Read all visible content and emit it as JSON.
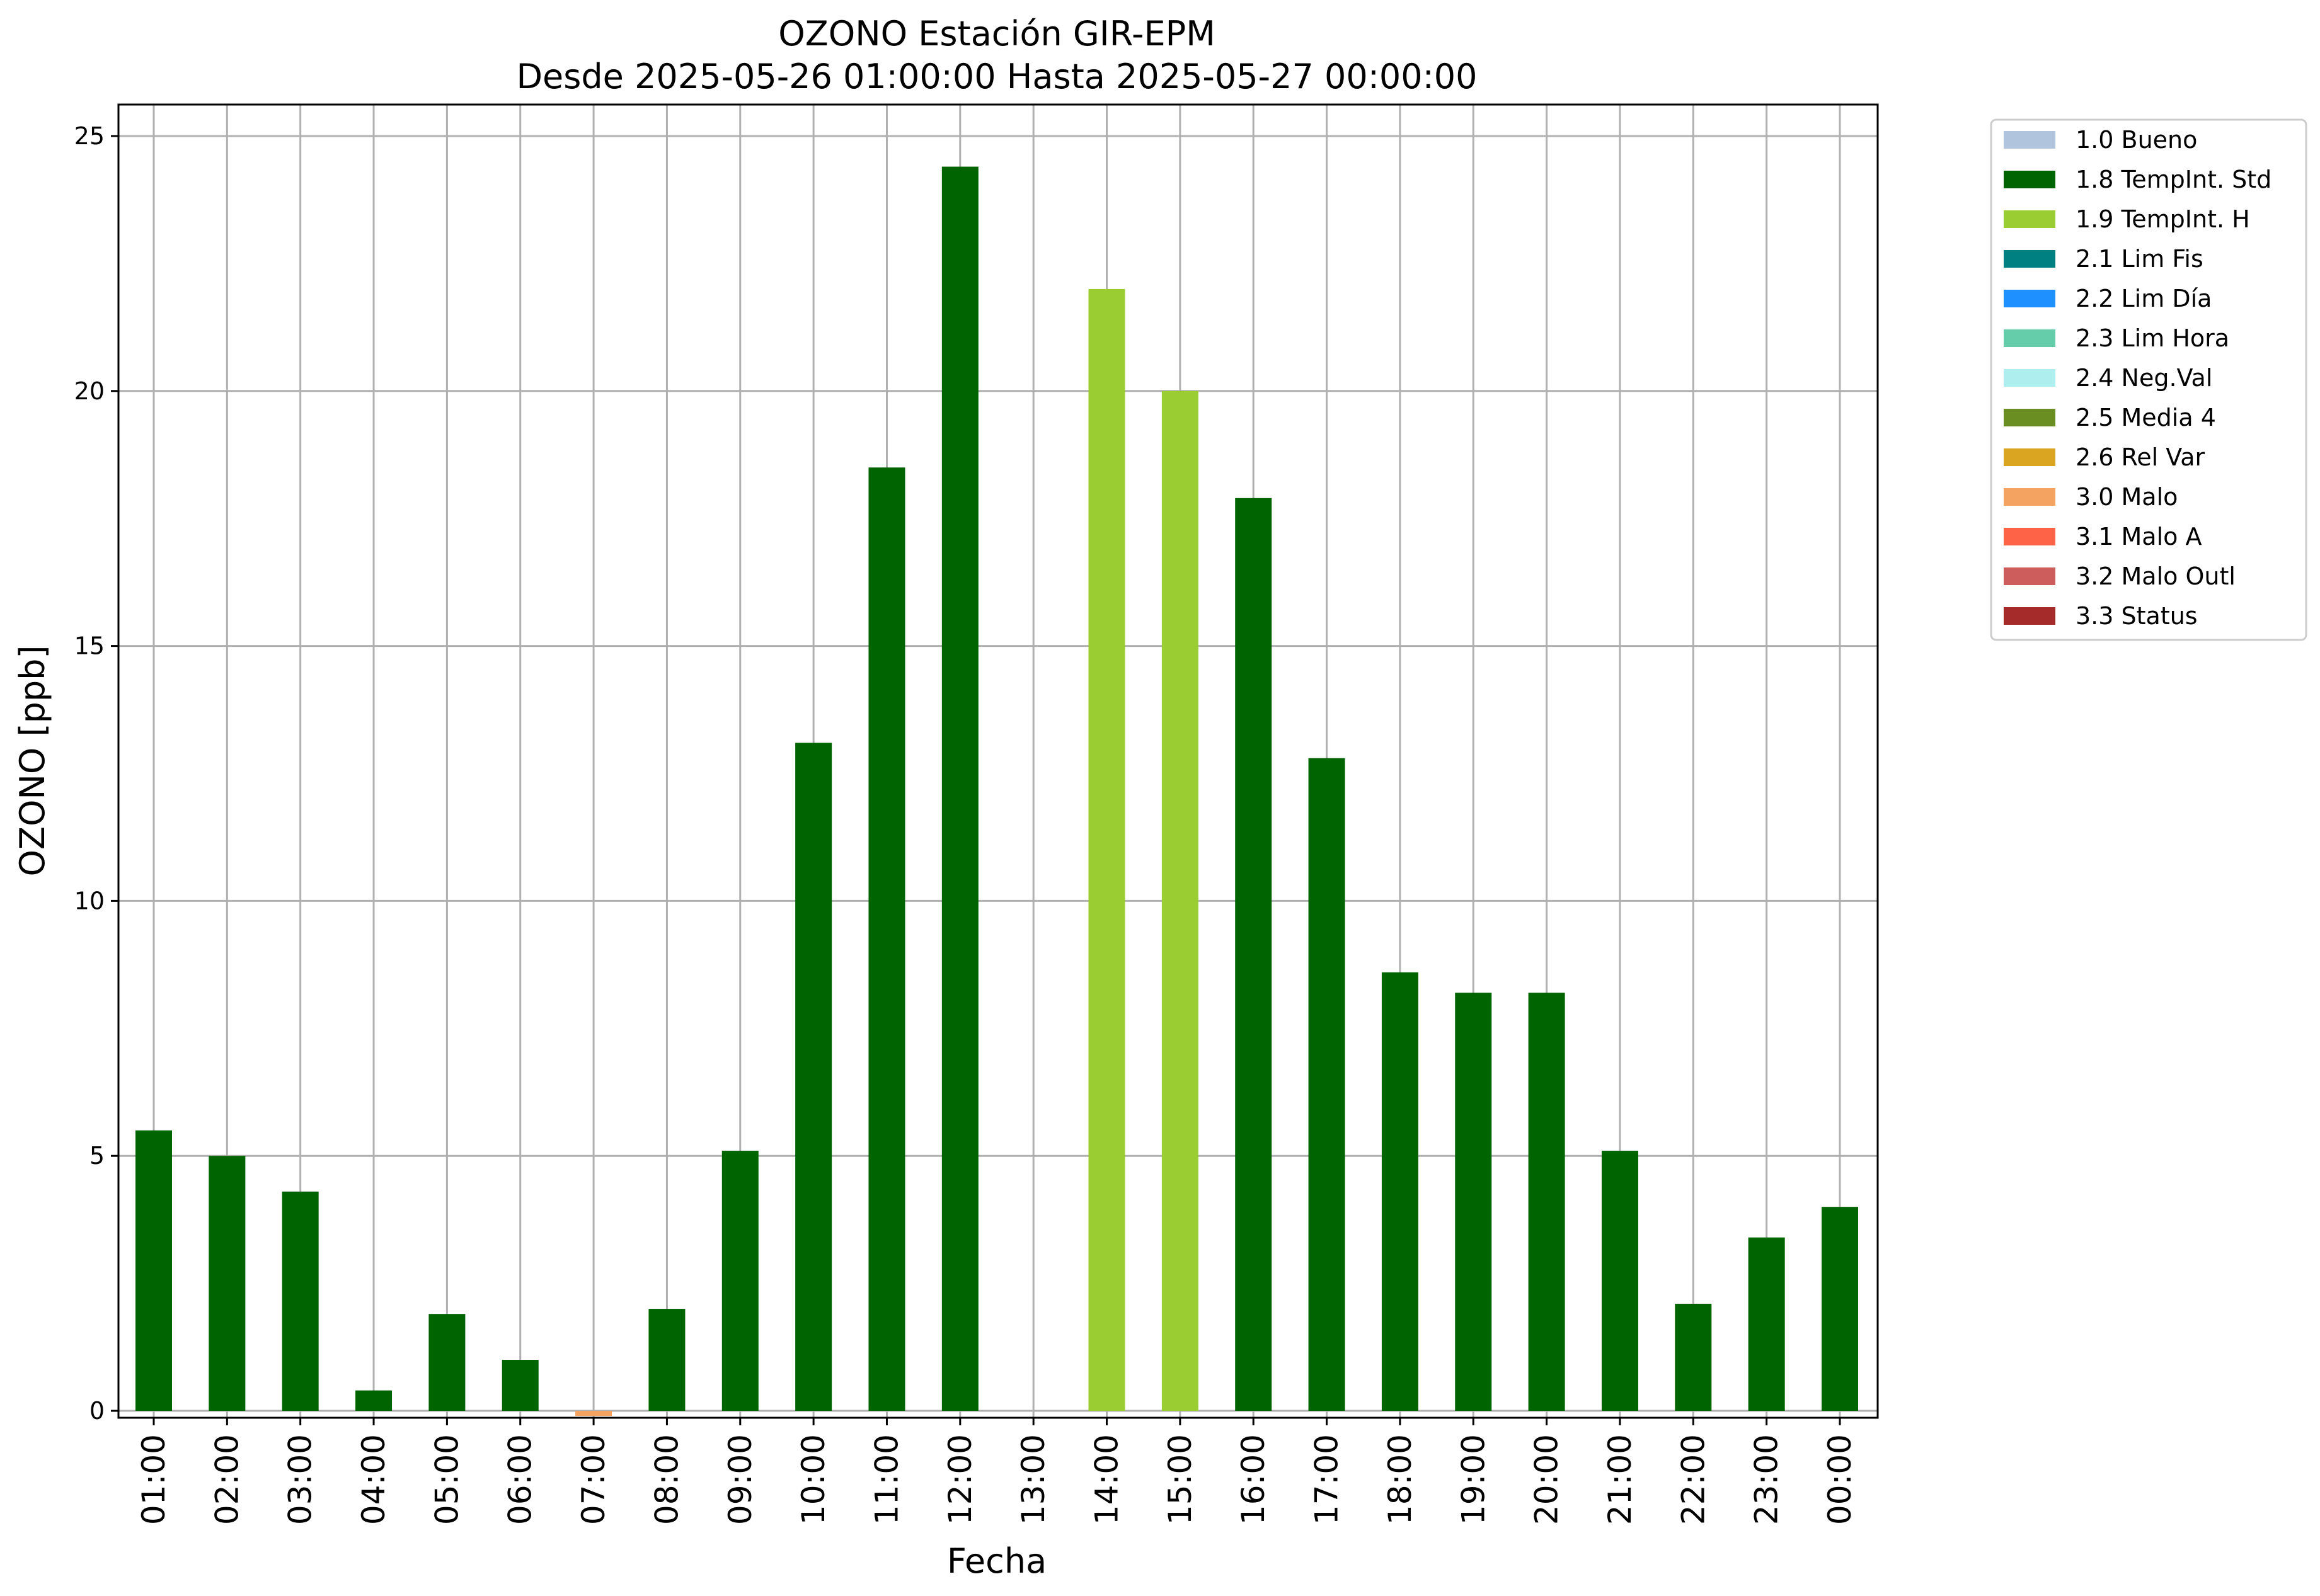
{
  "chart_data": {
    "type": "bar",
    "title": "OZONO Estación GIR-EPM",
    "subtitle": "Desde 2025-05-26 01:00:00 Hasta 2025-05-27 00:00:00",
    "xlabel": "Fecha",
    "ylabel": "OZONO [ppb]",
    "ylim": [
      0,
      25.6
    ],
    "yticks": [
      0,
      5,
      10,
      15,
      20,
      25
    ],
    "grid": true,
    "legend_position": "outside-top-right",
    "categories": [
      "01:00",
      "02:00",
      "03:00",
      "04:00",
      "05:00",
      "06:00",
      "07:00",
      "08:00",
      "09:00",
      "10:00",
      "11:00",
      "12:00",
      "13:00",
      "14:00",
      "15:00",
      "16:00",
      "17:00",
      "18:00",
      "19:00",
      "20:00",
      "21:00",
      "22:00",
      "23:00",
      "00:00"
    ],
    "values": [
      5.5,
      5.0,
      4.3,
      0.4,
      1.9,
      1.0,
      -0.1,
      2.0,
      5.1,
      13.1,
      18.5,
      24.4,
      null,
      22.0,
      20.0,
      17.9,
      12.8,
      8.6,
      8.2,
      8.2,
      5.1,
      2.1,
      3.4,
      4.0
    ],
    "flags": [
      "1.8 TempInt. Std",
      "1.8 TempInt. Std",
      "1.8 TempInt. Std",
      "1.8 TempInt. Std",
      "1.8 TempInt. Std",
      "1.8 TempInt. Std",
      "3.0 Malo",
      "1.8 TempInt. Std",
      "1.8 TempInt. Std",
      "1.8 TempInt. Std",
      "1.8 TempInt. Std",
      "1.8 TempInt. Std",
      null,
      "1.9 TempInt. H",
      "1.9 TempInt. H",
      "1.8 TempInt. Std",
      "1.8 TempInt. Std",
      "1.8 TempInt. Std",
      "1.8 TempInt. Std",
      "1.8 TempInt. Std",
      "1.8 TempInt. Std",
      "1.8 TempInt. Std",
      "1.8 TempInt. Std",
      "1.8 TempInt. Std"
    ],
    "legend": [
      {
        "label": "1.0 Bueno",
        "color": "#b0c4de"
      },
      {
        "label": "1.8 TempInt. Std",
        "color": "#006400"
      },
      {
        "label": "1.9 TempInt. H",
        "color": "#9acd32"
      },
      {
        "label": "2.1 Lim Fis",
        "color": "#008080"
      },
      {
        "label": "2.2 Lim Día",
        "color": "#1e90ff"
      },
      {
        "label": "2.3 Lim Hora",
        "color": "#66cdaa"
      },
      {
        "label": "2.4 Neg.Val",
        "color": "#afeeee"
      },
      {
        "label": "2.5 Media 4",
        "color": "#6b8e23"
      },
      {
        "label": "2.6 Rel Var",
        "color": "#daa520"
      },
      {
        "label": "3.0 Malo",
        "color": "#f4a460"
      },
      {
        "label": "3.1 Malo A",
        "color": "#ff6347"
      },
      {
        "label": "3.2 Malo Outl",
        "color": "#cd5c5c"
      },
      {
        "label": "3.3 Status",
        "color": "#a52a2a"
      }
    ]
  }
}
